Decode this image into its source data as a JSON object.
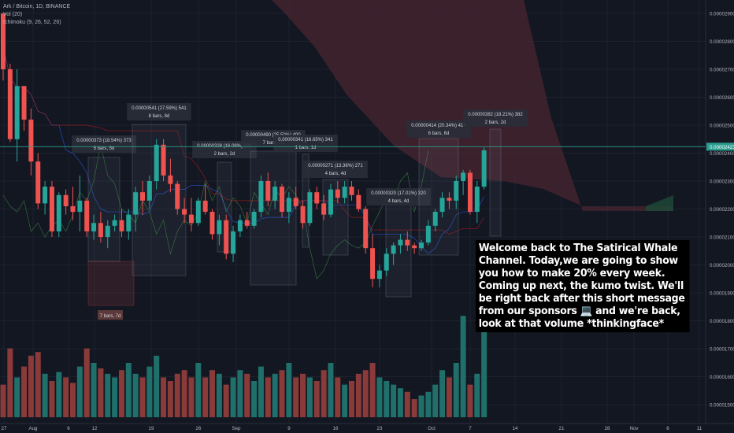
{
  "legend": {
    "symbol": "Ark / Bitcoin, 1D, BINANCE",
    "vol": "Vol (20)",
    "ichimoku": "Ichimoku (9, 26, 52, 26)"
  },
  "note_text": "Welcome back to The Satirical Whale Channel. Today,we are going to show you how to make 20% every week. Coming up next, the kumo twist. We'll be right back after this short message from our sponsors 💻 and we're back, look at that volume *thinkingface*",
  "colors": {
    "background": "#131722",
    "up": "#26a69a",
    "down": "#ef5350",
    "vol_up": "#1f6f6a",
    "vol_down": "#8b3a3a",
    "kumo_bear": "#4a2530",
    "kumo_bull": "#1f4a3a",
    "price_line": "#2a9d8f"
  },
  "chart_data": {
    "type": "candlestick",
    "price_axis": {
      "ticks": [
        "0.00002900",
        "0.00002800",
        "0.00002700",
        "0.00002600",
        "0.00002500",
        "0.00002400",
        "0.00002300",
        "0.00002200",
        "0.00002100",
        "0.00002000",
        "0.00001900",
        "0.00001800",
        "0.00001700",
        "0.00001600",
        "0.00001500"
      ],
      "current": "0.00002423"
    },
    "time_axis": [
      "27",
      "Aug",
      "6",
      "12",
      "19",
      "26",
      "Sep",
      "9",
      "16",
      "23",
      "Oct",
      "7",
      "14",
      "21",
      "28",
      "Nov",
      "6",
      "11"
    ],
    "candles": [
      [
        2900,
        2900,
        2660,
        2700
      ],
      [
        2700,
        2720,
        2440,
        2450
      ],
      [
        2450,
        2700,
        2370,
        2640
      ],
      [
        2640,
        2640,
        2480,
        2520
      ],
      [
        2520,
        2560,
        2320,
        2370
      ],
      [
        2370,
        2400,
        2200,
        2220
      ],
      [
        2220,
        2300,
        2180,
        2280
      ],
      [
        2280,
        2300,
        2100,
        2120
      ],
      [
        2120,
        2260,
        2100,
        2250
      ],
      [
        2250,
        2270,
        2180,
        2210
      ],
      [
        2210,
        2280,
        2160,
        2190
      ],
      [
        2190,
        2320,
        2120,
        2230
      ],
      [
        2230,
        2240,
        2100,
        2120
      ],
      [
        2120,
        2180,
        2090,
        2150
      ],
      [
        2150,
        2190,
        2080,
        2100
      ],
      [
        2100,
        2160,
        2060,
        2140
      ],
      [
        2140,
        2180,
        2120,
        2160
      ],
      [
        2160,
        2200,
        2100,
        2120
      ],
      [
        2120,
        2200,
        2090,
        2180
      ],
      [
        2180,
        2280,
        2120,
        2260
      ],
      [
        2260,
        2300,
        2180,
        2230
      ],
      [
        2230,
        2320,
        2200,
        2300
      ],
      [
        2300,
        2450,
        2270,
        2430
      ],
      [
        2430,
        2450,
        2300,
        2320
      ],
      [
        2320,
        2380,
        2260,
        2290
      ],
      [
        2290,
        2300,
        2180,
        2200
      ],
      [
        2200,
        2240,
        2150,
        2180
      ],
      [
        2180,
        2240,
        2120,
        2150
      ],
      [
        2150,
        2240,
        2140,
        2230
      ],
      [
        2230,
        2290,
        2180,
        2190
      ],
      [
        2190,
        2200,
        2090,
        2110
      ],
      [
        2110,
        2180,
        2070,
        2160
      ],
      [
        2160,
        2180,
        2020,
        2040
      ],
      [
        2040,
        2140,
        2010,
        2120
      ],
      [
        2120,
        2180,
        2100,
        2160
      ],
      [
        2160,
        2190,
        2130,
        2140
      ],
      [
        2140,
        2200,
        2130,
        2190
      ],
      [
        2190,
        2320,
        2170,
        2300
      ],
      [
        2300,
        2330,
        2210,
        2230
      ],
      [
        2230,
        2300,
        2200,
        2280
      ],
      [
        2280,
        2290,
        2170,
        2190
      ],
      [
        2190,
        2260,
        2150,
        2240
      ],
      [
        2240,
        2280,
        2200,
        2210
      ],
      [
        2210,
        2230,
        2130,
        2150
      ],
      [
        2150,
        2270,
        2140,
        2260
      ],
      [
        2260,
        2280,
        2200,
        2220
      ],
      [
        2220,
        2250,
        2160,
        2180
      ],
      [
        2180,
        2290,
        2170,
        2270
      ],
      [
        2270,
        2300,
        2220,
        2240
      ],
      [
        2240,
        2300,
        2220,
        2280
      ],
      [
        2280,
        2300,
        2230,
        2250
      ],
      [
        2250,
        2270,
        2190,
        2200
      ],
      [
        2200,
        2210,
        2040,
        2060
      ],
      [
        2060,
        2110,
        1920,
        1950
      ],
      [
        1950,
        2000,
        1920,
        1980
      ],
      [
        1980,
        2060,
        1960,
        2040
      ],
      [
        2040,
        2080,
        2000,
        2070
      ],
      [
        2070,
        2110,
        2040,
        2090
      ],
      [
        2090,
        2120,
        2050,
        2070
      ],
      [
        2070,
        2080,
        2040,
        2060
      ],
      [
        2060,
        2090,
        2050,
        2080
      ],
      [
        2080,
        2160,
        2070,
        2140
      ],
      [
        2140,
        2200,
        2120,
        2190
      ],
      [
        2190,
        2260,
        2170,
        2240
      ],
      [
        2240,
        2260,
        2200,
        2230
      ],
      [
        2230,
        2320,
        2200,
        2300
      ],
      [
        2300,
        2340,
        2250,
        2330
      ],
      [
        2330,
        2340,
        2180,
        2190
      ],
      [
        2190,
        2300,
        2150,
        2280
      ],
      [
        2280,
        2420,
        2270,
        2410
      ]
    ],
    "volumes": [
      18,
      38,
      22,
      28,
      34,
      36,
      24,
      20,
      25,
      22,
      19,
      28,
      38,
      30,
      27,
      24,
      22,
      26,
      30,
      24,
      22,
      28,
      34,
      22,
      20,
      24,
      26,
      22,
      30,
      22,
      26,
      24,
      18,
      22,
      26,
      24,
      20,
      28,
      22,
      24,
      26,
      30,
      22,
      24,
      22,
      20,
      26,
      30,
      22,
      18,
      20,
      24,
      26,
      30,
      22,
      20,
      18,
      16,
      14,
      10,
      12,
      14,
      18,
      26,
      22,
      30,
      56,
      18,
      24,
      56
    ]
  },
  "measurements": [
    {
      "value": "0.00000373 (18.54%) 373",
      "bars": "5 bars, 5d"
    },
    {
      "value": "0.00000541 (27.59%) 541",
      "bars": "8 bars, 8d"
    },
    {
      "value": "0.00000328 (16.08%) 328",
      "bars": "2 bars, 2d"
    },
    {
      "value": "0.00000490 (25.50%) 490",
      "bars": "7 bars, 7d"
    },
    {
      "value": "0.00000341 (16.65%) 341",
      "bars": "1 bars, 1d"
    },
    {
      "value": "0.00000271 (13.36%) 271",
      "bars": "4 bars, 4d"
    },
    {
      "value": "0.00000320 (17.01%) 320",
      "bars": "4 bars, 4d"
    },
    {
      "value": "0.00000414 (20.34%) 414",
      "bars": "6 bars, 6d"
    },
    {
      "value": "0.00000382 (18.21%) 382",
      "bars": "2 bars, 2d"
    },
    {
      "value": "",
      "bars": "7 bars, 7d"
    }
  ]
}
